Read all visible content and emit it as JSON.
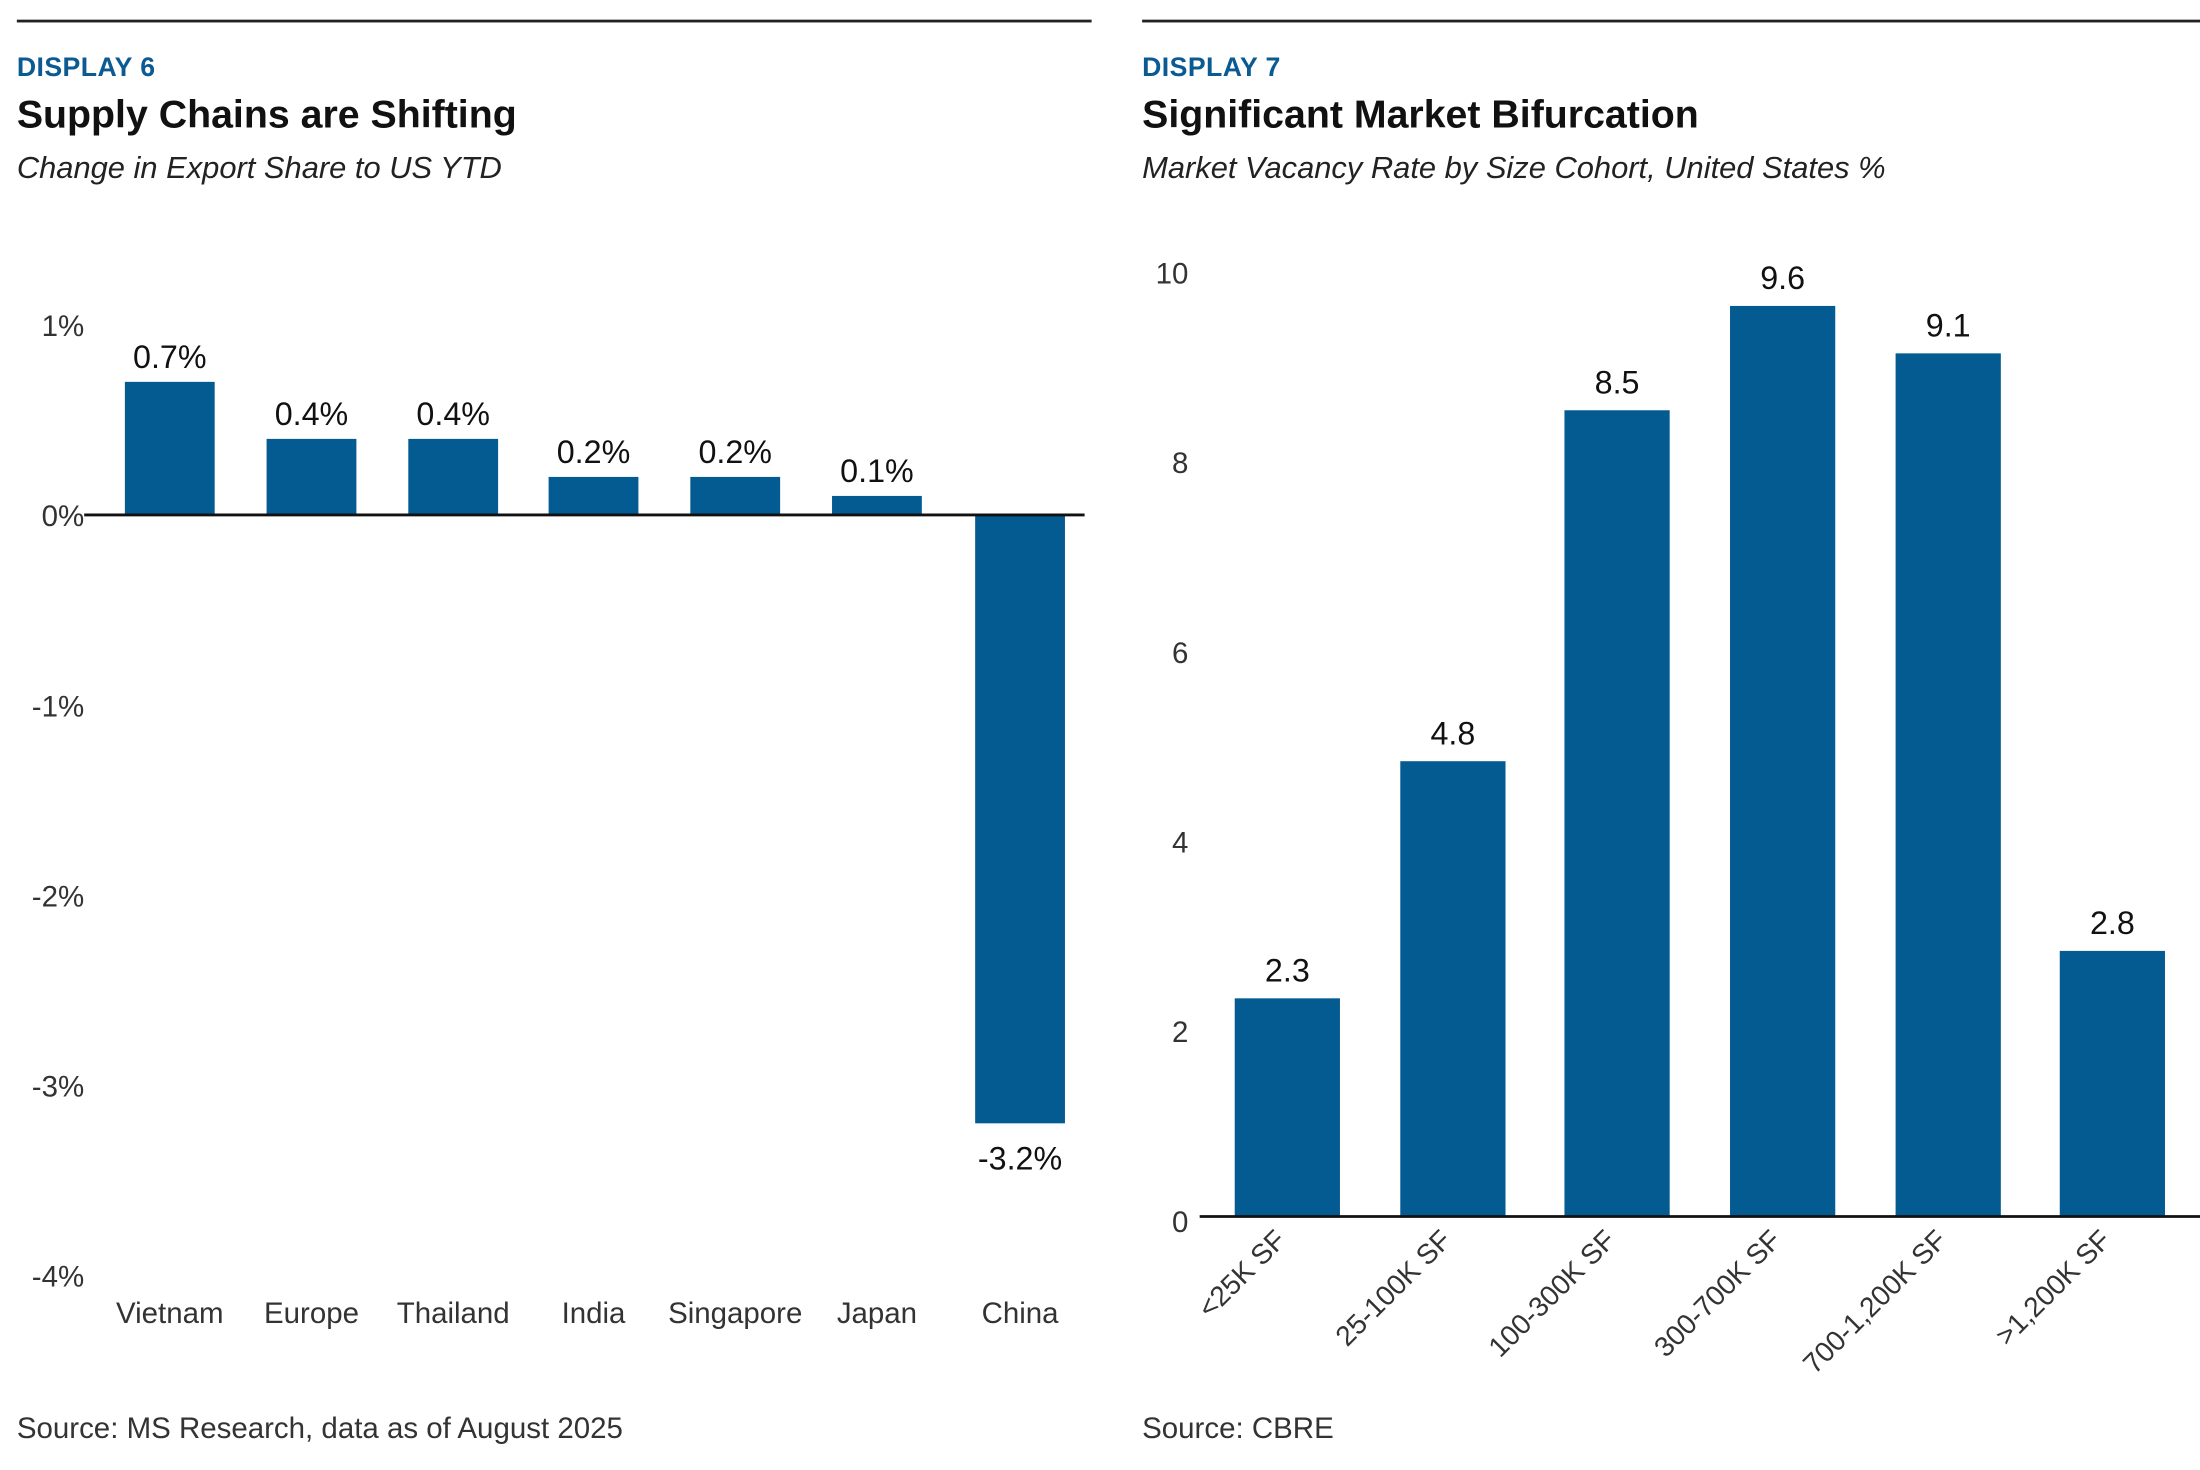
{
  "colors": {
    "bar": "#035b91",
    "accent": "#0b5a92",
    "axis": "#111111"
  },
  "panels": [
    {
      "display": "DISPLAY 6",
      "title": "Supply Chains are Shifting",
      "subtitle": "Change in Export Share to US YTD",
      "source": "Source: MS Research, data as of August 2025"
    },
    {
      "display": "DISPLAY 7",
      "title": "Significant Market Bifurcation",
      "subtitle": "Market Vacancy Rate by Size Cohort, United States %",
      "source": "Source: CBRE"
    }
  ],
  "chart_data": [
    {
      "type": "bar",
      "title": "Supply Chains are Shifting",
      "subtitle": "Change in Export Share to US YTD",
      "categories": [
        "Vietnam",
        "Europe",
        "Thailand",
        "India",
        "Singapore",
        "Japan",
        "China"
      ],
      "values": [
        0.7,
        0.4,
        0.4,
        0.2,
        0.2,
        0.1,
        -3.2
      ],
      "data_labels": [
        "0.7%",
        "0.4%",
        "0.4%",
        "0.2%",
        "0.2%",
        "0.1%",
        "-3.2%"
      ],
      "yticks": [
        1,
        0,
        -1,
        -2,
        -3,
        -4
      ],
      "ytick_labels": [
        "1%",
        "0%",
        "-1%",
        "-2%",
        "-3%",
        "-4%"
      ],
      "ylim": [
        -4,
        1
      ],
      "grid": false,
      "legend": "none"
    },
    {
      "type": "bar",
      "title": "Significant Market Bifurcation",
      "subtitle": "Market Vacancy Rate by Size Cohort, United States %",
      "categories": [
        "<25K SF",
        "25-100K SF",
        "100-300K SF",
        "300-700K SF",
        "700-1,200K SF",
        ">1,200K SF"
      ],
      "values": [
        2.3,
        4.8,
        8.5,
        9.6,
        9.1,
        2.8
      ],
      "data_labels": [
        "2.3",
        "4.8",
        "8.5",
        "9.6",
        "9.1",
        "2.8"
      ],
      "yticks": [
        0,
        2,
        4,
        6,
        8,
        10
      ],
      "ytick_labels": [
        "0",
        "2",
        "4",
        "6",
        "8",
        "10"
      ],
      "ylim": [
        0,
        10
      ],
      "grid": false,
      "legend": "none",
      "xtick_rotation": -45
    }
  ]
}
